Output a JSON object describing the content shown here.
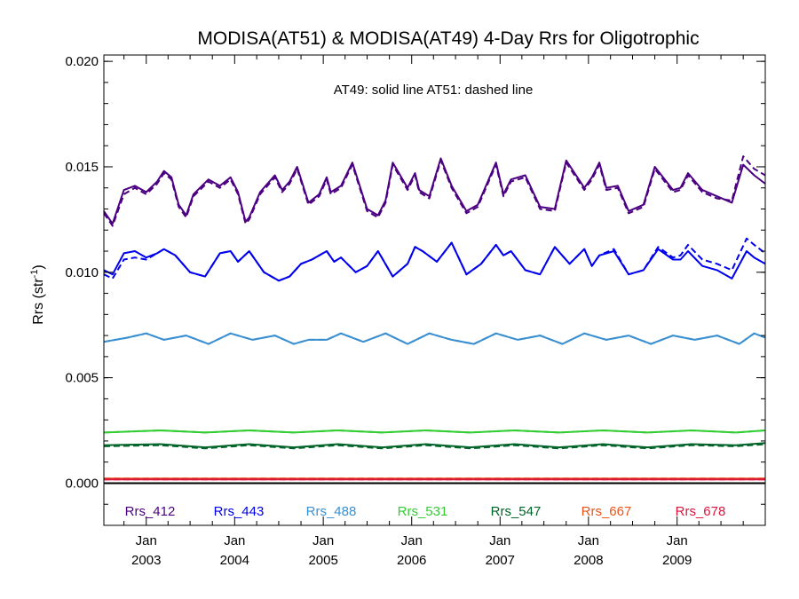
{
  "chart_data": {
    "type": "line",
    "title": "MODISA(AT51) & MODISA(AT49) 4-Day Rrs for Oligotrophic",
    "annotation": "AT49: solid line   AT51: dashed line",
    "ylabel": "Rrs (str",
    "ylabel_sup": "-1",
    "ylabel_end": ")",
    "xlabel": "",
    "xlim": [
      "2002-07-10",
      "2009-12-31"
    ],
    "ylim": [
      -0.002,
      0.0203
    ],
    "yticks": [
      0.0,
      0.005,
      0.01,
      0.015,
      0.02
    ],
    "ytick_labels": [
      "0.000",
      "0.005",
      "0.010",
      "0.015",
      "0.020"
    ],
    "xticks": [
      {
        "date": "2003-01-01",
        "line1": "Jan",
        "line2": "2003"
      },
      {
        "date": "2004-01-01",
        "line1": "Jan",
        "line2": "2004"
      },
      {
        "date": "2005-01-01",
        "line1": "Jan",
        "line2": "2005"
      },
      {
        "date": "2006-01-01",
        "line1": "Jan",
        "line2": "2006"
      },
      {
        "date": "2007-01-01",
        "line1": "Jan",
        "line2": "2007"
      },
      {
        "date": "2008-01-01",
        "line1": "Jan",
        "line2": "2008"
      },
      {
        "date": "2009-01-01",
        "line1": "Jan",
        "line2": "2009"
      }
    ],
    "zero_line": 0.0,
    "grid": false,
    "legend": {
      "position": "bottom",
      "layout": "horizontal"
    },
    "series": [
      {
        "name": "Rrs_412",
        "color": "#4b0082",
        "x": [
          "2002-07-10",
          "2002-08-15",
          "2002-10-01",
          "2002-11-15",
          "2003-01-01",
          "2003-02-15",
          "2003-03-15",
          "2003-04-15",
          "2003-05-15",
          "2003-06-15",
          "2003-07-15",
          "2003-09-15",
          "2003-11-01",
          "2003-12-15",
          "2004-01-15",
          "2004-02-15",
          "2004-03-01",
          "2004-04-15",
          "2004-06-15",
          "2004-07-15",
          "2004-08-15",
          "2004-09-15",
          "2004-11-01",
          "2004-12-15",
          "2005-01-15",
          "2005-02-01",
          "2005-03-15",
          "2005-05-01",
          "2005-07-01",
          "2005-08-15",
          "2005-09-15",
          "2005-10-15",
          "2005-12-15",
          "2006-01-15",
          "2006-02-01",
          "2006-03-15",
          "2006-05-01",
          "2006-06-15",
          "2006-08-15",
          "2006-10-01",
          "2006-12-15",
          "2007-01-15",
          "2007-02-15",
          "2007-04-15",
          "2007-06-15",
          "2007-08-15",
          "2007-10-01",
          "2007-12-15",
          "2008-01-15",
          "2008-02-15",
          "2008-03-15",
          "2008-05-01",
          "2008-06-15",
          "2008-08-15",
          "2008-10-01",
          "2008-12-15",
          "2009-01-15",
          "2009-02-15",
          "2009-04-15",
          "2009-06-15",
          "2009-08-15",
          "2009-10-01",
          "2009-11-15",
          "2009-12-31"
        ],
        "solid": [
          0.0129,
          0.0123,
          0.0139,
          0.0141,
          0.0138,
          0.0143,
          0.0148,
          0.0145,
          0.0132,
          0.0127,
          0.0137,
          0.0144,
          0.0141,
          0.0145,
          0.0138,
          0.0124,
          0.0126,
          0.0138,
          0.0146,
          0.0139,
          0.0143,
          0.015,
          0.0133,
          0.0137,
          0.0145,
          0.0138,
          0.0141,
          0.0152,
          0.013,
          0.0127,
          0.0134,
          0.0152,
          0.014,
          0.0147,
          0.0139,
          0.0136,
          0.0154,
          0.0141,
          0.0129,
          0.0132,
          0.0152,
          0.0137,
          0.0144,
          0.0146,
          0.0131,
          0.013,
          0.0153,
          0.014,
          0.0145,
          0.0152,
          0.014,
          0.0141,
          0.0129,
          0.0132,
          0.015,
          0.0139,
          0.014,
          0.0147,
          0.0139,
          0.0136,
          0.0133,
          0.0151,
          0.0146,
          0.0142
        ],
        "dashed": [
          0.0128,
          0.0122,
          0.0137,
          0.014,
          0.0137,
          0.0142,
          0.0147,
          0.0144,
          0.0131,
          0.0126,
          0.0136,
          0.0143,
          0.014,
          0.0144,
          0.0137,
          0.0123,
          0.0125,
          0.0137,
          0.0145,
          0.0138,
          0.0142,
          0.0149,
          0.0132,
          0.0136,
          0.0144,
          0.0137,
          0.014,
          0.0151,
          0.0129,
          0.0126,
          0.0133,
          0.0151,
          0.0139,
          0.0146,
          0.0138,
          0.0135,
          0.0153,
          0.014,
          0.0128,
          0.0131,
          0.0151,
          0.0136,
          0.0143,
          0.0145,
          0.013,
          0.0129,
          0.0152,
          0.0139,
          0.0144,
          0.0151,
          0.0139,
          0.014,
          0.0128,
          0.0131,
          0.0149,
          0.0138,
          0.0139,
          0.0146,
          0.0138,
          0.0135,
          0.0134,
          0.0155,
          0.0149,
          0.0146
        ]
      },
      {
        "name": "Rrs_443",
        "color": "#0000ee",
        "x": [
          "2002-07-10",
          "2002-08-15",
          "2002-10-01",
          "2002-11-15",
          "2003-01-01",
          "2003-02-15",
          "2003-03-15",
          "2003-05-01",
          "2003-07-01",
          "2003-09-01",
          "2003-11-01",
          "2003-12-15",
          "2004-01-15",
          "2004-03-01",
          "2004-05-01",
          "2004-07-01",
          "2004-08-15",
          "2004-10-01",
          "2004-11-15",
          "2005-01-15",
          "2005-02-15",
          "2005-03-15",
          "2005-05-15",
          "2005-07-01",
          "2005-08-15",
          "2005-10-15",
          "2005-12-15",
          "2006-01-15",
          "2006-02-15",
          "2006-04-15",
          "2006-06-15",
          "2006-08-15",
          "2006-10-15",
          "2006-12-15",
          "2007-01-15",
          "2007-02-15",
          "2007-04-15",
          "2007-06-15",
          "2007-08-15",
          "2007-10-15",
          "2007-12-15",
          "2008-01-15",
          "2008-02-15",
          "2008-04-15",
          "2008-06-15",
          "2008-08-15",
          "2008-10-15",
          "2008-12-15",
          "2009-01-15",
          "2009-02-15",
          "2009-04-15",
          "2009-06-15",
          "2009-08-15",
          "2009-10-15",
          "2009-11-15",
          "2009-12-31"
        ],
        "solid": [
          0.0101,
          0.0099,
          0.0109,
          0.011,
          0.0107,
          0.0109,
          0.0111,
          0.0108,
          0.01,
          0.0098,
          0.0109,
          0.011,
          0.0105,
          0.011,
          0.01,
          0.0096,
          0.0098,
          0.0104,
          0.0106,
          0.011,
          0.0105,
          0.0107,
          0.01,
          0.0103,
          0.011,
          0.0098,
          0.0104,
          0.0112,
          0.011,
          0.0105,
          0.0114,
          0.0099,
          0.0104,
          0.0113,
          0.0108,
          0.011,
          0.0101,
          0.0099,
          0.0112,
          0.0104,
          0.0111,
          0.0103,
          0.0108,
          0.011,
          0.0099,
          0.0101,
          0.0111,
          0.0106,
          0.0106,
          0.011,
          0.0103,
          0.0101,
          0.0097,
          0.011,
          0.0107,
          0.0104
        ],
        "dashed": [
          0.0099,
          0.0097,
          0.0106,
          0.0107,
          0.0106,
          0.0109,
          0.0111,
          0.0108,
          0.01,
          0.0098,
          0.0109,
          0.011,
          0.0105,
          0.011,
          0.01,
          0.0096,
          0.0098,
          0.0104,
          0.0106,
          0.011,
          0.0105,
          0.0107,
          0.01,
          0.0103,
          0.011,
          0.0098,
          0.0104,
          0.0112,
          0.011,
          0.0105,
          0.0114,
          0.0099,
          0.0104,
          0.0113,
          0.0108,
          0.011,
          0.0101,
          0.0099,
          0.0112,
          0.0104,
          0.0111,
          0.0103,
          0.0108,
          0.0111,
          0.0099,
          0.0101,
          0.0112,
          0.0107,
          0.0108,
          0.0113,
          0.0106,
          0.0104,
          0.0101,
          0.0116,
          0.0113,
          0.0109
        ]
      },
      {
        "name": "Rrs_488",
        "color": "#3a8fd0",
        "x": [
          "2002-07-10",
          "2002-10-15",
          "2003-01-01",
          "2003-03-15",
          "2003-06-15",
          "2003-09-15",
          "2003-12-15",
          "2004-03-15",
          "2004-06-15",
          "2004-09-01",
          "2004-11-01",
          "2005-01-15",
          "2005-03-15",
          "2005-06-15",
          "2005-09-15",
          "2005-12-15",
          "2006-03-15",
          "2006-06-15",
          "2006-09-15",
          "2006-12-15",
          "2007-03-15",
          "2007-06-15",
          "2007-09-15",
          "2007-12-15",
          "2008-03-15",
          "2008-06-15",
          "2008-09-15",
          "2008-12-15",
          "2009-03-15",
          "2009-06-15",
          "2009-09-15",
          "2009-11-15",
          "2009-12-31"
        ],
        "solid": [
          0.0067,
          0.0069,
          0.0071,
          0.0068,
          0.007,
          0.0066,
          0.0071,
          0.0068,
          0.007,
          0.0066,
          0.0068,
          0.0068,
          0.0071,
          0.0067,
          0.0071,
          0.0066,
          0.0071,
          0.0068,
          0.0066,
          0.0071,
          0.0068,
          0.007,
          0.0066,
          0.0071,
          0.0068,
          0.007,
          0.0066,
          0.007,
          0.0068,
          0.007,
          0.0066,
          0.0071,
          0.0069
        ],
        "dashed": [
          0.0067,
          0.0069,
          0.0071,
          0.0068,
          0.007,
          0.0066,
          0.0071,
          0.0068,
          0.007,
          0.0066,
          0.0068,
          0.0068,
          0.0071,
          0.0067,
          0.0071,
          0.0066,
          0.0071,
          0.0068,
          0.0066,
          0.0071,
          0.0068,
          0.007,
          0.0066,
          0.0071,
          0.0068,
          0.007,
          0.0066,
          0.007,
          0.0068,
          0.007,
          0.0066,
          0.0071,
          0.0069
        ]
      },
      {
        "name": "Rrs_531",
        "color": "#32cd32",
        "x": [
          "2002-07-10",
          "2003-03-01",
          "2003-09-01",
          "2004-03-01",
          "2004-09-01",
          "2005-03-01",
          "2005-09-01",
          "2006-03-01",
          "2006-09-01",
          "2007-03-01",
          "2007-09-01",
          "2008-03-01",
          "2008-09-01",
          "2009-03-01",
          "2009-09-01",
          "2009-12-31"
        ],
        "solid": [
          0.0024,
          0.0025,
          0.0024,
          0.0025,
          0.0024,
          0.0025,
          0.0024,
          0.0025,
          0.0024,
          0.0025,
          0.0024,
          0.0025,
          0.0024,
          0.0025,
          0.0024,
          0.0025
        ],
        "dashed": [
          0.0024,
          0.0025,
          0.0024,
          0.0025,
          0.0024,
          0.0025,
          0.0024,
          0.0025,
          0.0024,
          0.0025,
          0.0024,
          0.0025,
          0.0024,
          0.0025,
          0.0024,
          0.0025
        ]
      },
      {
        "name": "Rrs_547",
        "color": "#006428",
        "x": [
          "2002-07-10",
          "2003-03-01",
          "2003-09-01",
          "2004-03-01",
          "2004-09-01",
          "2005-03-01",
          "2005-09-01",
          "2006-03-01",
          "2006-09-01",
          "2007-03-01",
          "2007-09-01",
          "2008-03-01",
          "2008-09-01",
          "2009-03-01",
          "2009-09-01",
          "2009-12-31"
        ],
        "solid": [
          0.0018,
          0.00185,
          0.0017,
          0.00185,
          0.0017,
          0.00185,
          0.0017,
          0.00185,
          0.0017,
          0.00185,
          0.0017,
          0.00185,
          0.0017,
          0.00185,
          0.0018,
          0.0019
        ],
        "dashed": [
          0.00175,
          0.0018,
          0.00165,
          0.0018,
          0.00165,
          0.0018,
          0.00165,
          0.0018,
          0.00165,
          0.0018,
          0.00165,
          0.0018,
          0.00165,
          0.0018,
          0.00175,
          0.00185
        ]
      },
      {
        "name": "Rrs_667",
        "color": "#e8541a",
        "x": [
          "2002-07-10",
          "2009-12-31"
        ],
        "solid": [
          0.00022,
          0.00022
        ],
        "dashed": [
          0.00022,
          0.00022
        ]
      },
      {
        "name": "Rrs_678",
        "color": "#dc143c",
        "x": [
          "2002-07-10",
          "2009-12-31"
        ],
        "solid": [
          0.00018,
          0.00018
        ],
        "dashed": [
          0.00018,
          0.00018
        ]
      }
    ]
  }
}
